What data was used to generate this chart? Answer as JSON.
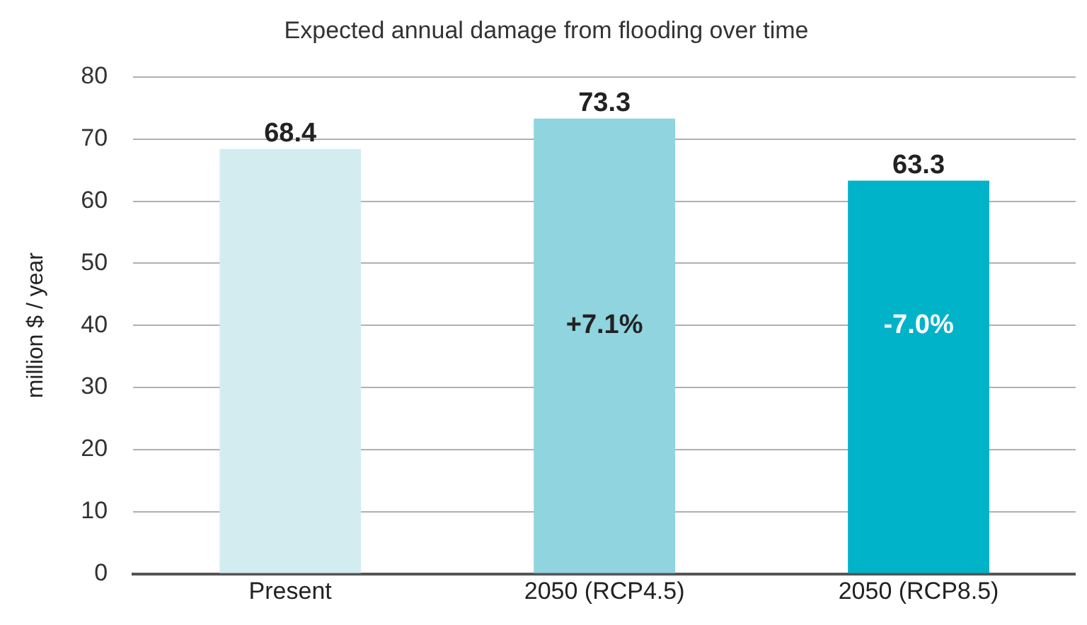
{
  "chart_data": {
    "type": "bar",
    "title": "Expected annual damage from flooding over time",
    "ylabel": "million $ / year",
    "categories": [
      "Present",
      "2050 (RCP4.5)",
      "2050 (RCP8.5)"
    ],
    "values": [
      68.4,
      73.3,
      63.3
    ],
    "colors": [
      "#d3ecf0",
      "#8fd4df",
      "#00b3c8"
    ],
    "ylim": [
      0,
      80
    ],
    "yticks": [
      0,
      10,
      20,
      30,
      40,
      50,
      60,
      70,
      80
    ],
    "grid": "y",
    "legend": false,
    "data_labels": true,
    "annotations": [
      "+7.1%",
      "-7.0%"
    ]
  }
}
